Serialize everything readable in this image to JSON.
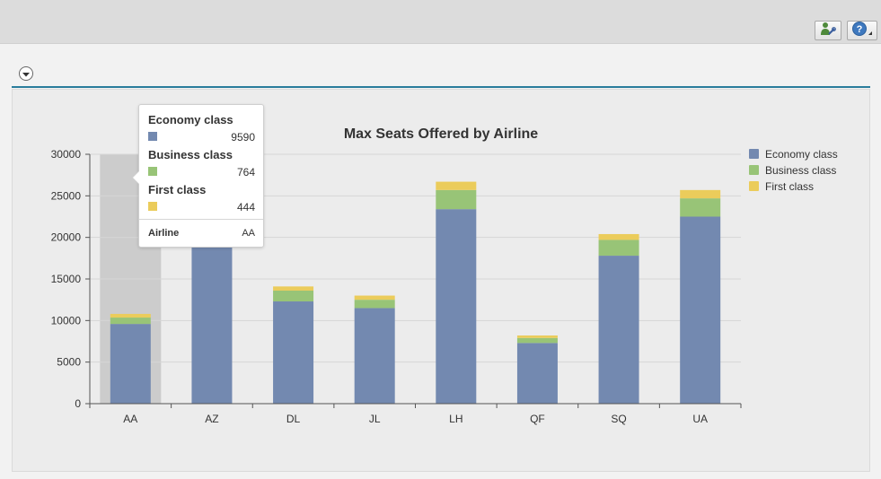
{
  "toolbar": {
    "personalize_icon": "user-settings-icon",
    "help_icon": "help-icon"
  },
  "panel": {
    "collapse_icon": "chevron-down-icon"
  },
  "tooltip": {
    "items": [
      {
        "name": "Economy class",
        "value": "9590",
        "color": "#7389b0"
      },
      {
        "name": "Business class",
        "value": "764",
        "color": "#98c477"
      },
      {
        "name": "First class",
        "value": "444",
        "color": "#ebcc5b"
      }
    ],
    "dimension_label": "Airline",
    "dimension_value": "AA"
  },
  "chart_data": {
    "type": "bar",
    "stacked": true,
    "title": "Max Seats Offered by Airline",
    "xlabel": "",
    "ylabel": "",
    "categories": [
      "AA",
      "AZ",
      "DL",
      "JL",
      "LH",
      "QF",
      "SQ",
      "UA"
    ],
    "series": [
      {
        "name": "Economy class",
        "color": "#7389b0",
        "values": [
          9590,
          19200,
          12300,
          11500,
          23400,
          7300,
          17800,
          22500
        ]
      },
      {
        "name": "Business class",
        "color": "#98c477",
        "values": [
          764,
          1100,
          1300,
          1000,
          2300,
          600,
          1900,
          2200
        ]
      },
      {
        "name": "First class",
        "color": "#ebcc5b",
        "values": [
          444,
          500,
          500,
          500,
          1000,
          300,
          700,
          1000
        ]
      }
    ],
    "ylim": [
      0,
      30000
    ],
    "yticks": [
      0,
      5000,
      10000,
      15000,
      20000,
      25000,
      30000
    ],
    "grid": true,
    "legend": "right",
    "highlighted_category": "AA",
    "highlight_color": "#cccccc"
  }
}
